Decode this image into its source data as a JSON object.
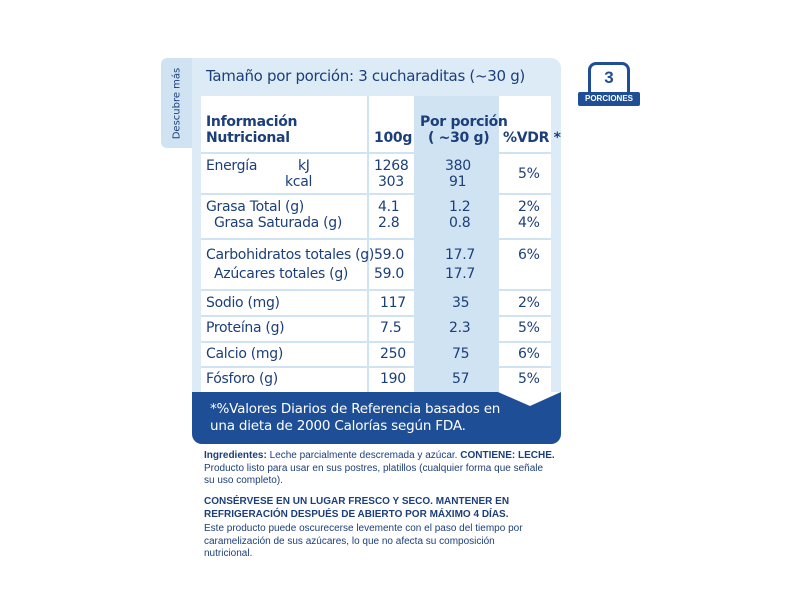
{
  "side_tab": "Descubre más",
  "badge": {
    "number": "3",
    "label": "PORCIONES"
  },
  "serving": "Tamaño por porción: 3 cucharaditas (~30 g)",
  "table": {
    "header": {
      "col1_line1": "Información",
      "col1_line2": "Nutricional",
      "col2": "100g",
      "col3_line1": "Por porción",
      "col3_line2": "( ~30 g)",
      "col4": "%VDR *"
    },
    "rows": [
      {
        "name": "Energía",
        "unit1": "kJ",
        "unit2": "kcal",
        "v100_1": "1268",
        "v100_2": "303",
        "vp_1": "380",
        "vp_2": "91",
        "vdr": "5%"
      },
      {
        "name": "Grasa Total (g)",
        "name2": "Grasa Saturada (g)",
        "v100_1": "4.1",
        "v100_2": "2.8",
        "vp_1": "1.2",
        "vp_2": "0.8",
        "vdr_1": "2%",
        "vdr_2": "4%"
      },
      {
        "name": "Carbohidratos totales (g)",
        "name2": "Azúcares totales (g)",
        "v100_1": "59.0",
        "v100_2": "59.0",
        "vp_1": "17.7",
        "vp_2": "17.7",
        "vdr": "6%"
      },
      {
        "name": "Sodio (mg)",
        "v100": "117",
        "vp": "35",
        "vdr": "2%"
      },
      {
        "name": "Proteína (g)",
        "v100": "7.5",
        "vp": "2.3",
        "vdr": "5%"
      },
      {
        "name": "Calcio (mg)",
        "v100": "250",
        "vp": "75",
        "vdr": "6%"
      },
      {
        "name": "Fósforo (g)",
        "v100": "190",
        "vp": "57",
        "vdr": "5%"
      }
    ]
  },
  "footnote_line1": "*%Valores Diarios de Referencia basados en",
  "footnote_line2": "una dieta de 2000 Calorías según FDA.",
  "ingredients_label": "Ingredientes:",
  "ingredients_text": " Leche parcialmente descremada y azúcar.  ",
  "contains_label": "CONTIENE: LECHE.",
  "usage_text": "Producto listo para usar en  sus postres, platillos (cualquier forma que señale su uso completo).",
  "storage_line1": "CONSÉRVESE EN UN LUGAR FRESCO Y SECO. MANTENER EN",
  "storage_line2": "REFRIGERACIÓN DESPUÉS DE ABIERTO POR MÁXIMO 4 DÍAS.",
  "note_text": "Este producto puede oscurecerse levemente con el paso del tiempo por caramelización de sus azúcares, lo que no afecta su composición nutricional.",
  "colors": {
    "dark_blue": "#1e4e96",
    "light_blue": "#dcebf6",
    "text_blue": "#1c3f7a"
  }
}
